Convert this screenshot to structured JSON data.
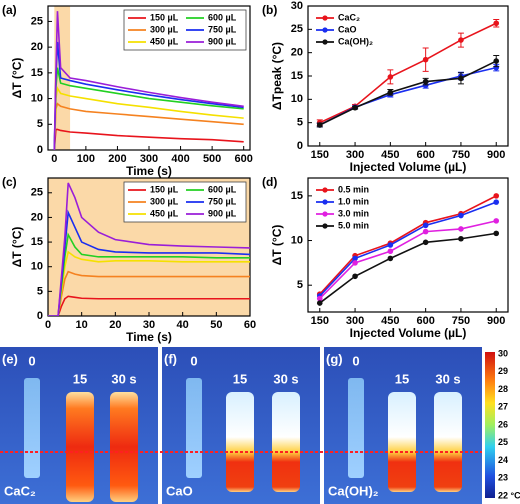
{
  "chart_data": [
    {
      "type": "line",
      "panel_label": "(a)",
      "xlabel": "Time (s)",
      "ylabel": "ΔT (°C)",
      "xlim": [
        -20,
        620
      ],
      "ylim": [
        0,
        28
      ],
      "xticks": [
        0,
        100,
        200,
        300,
        400,
        500,
        600
      ],
      "yticks": [
        0,
        5,
        10,
        15,
        20,
        25
      ],
      "shade": [
        0,
        50
      ],
      "shade_color": "#fbd9a8",
      "legend": "upper right",
      "legend_columns": 2,
      "x": [
        0,
        5,
        10,
        20,
        50,
        100,
        200,
        300,
        400,
        500,
        600
      ],
      "series": [
        {
          "name": "150 µL",
          "color": "#e8141c",
          "values": [
            0,
            4,
            4,
            3.8,
            3.5,
            3.3,
            2.8,
            2.5,
            2.2,
            2,
            1.6
          ]
        },
        {
          "name": "300 µL",
          "color": "#f58220",
          "values": [
            0,
            8,
            9,
            8.5,
            8,
            7.5,
            7,
            6.5,
            6,
            5.5,
            5
          ]
        },
        {
          "name": "450 µL",
          "color": "#f5e000",
          "values": [
            0,
            10,
            12,
            11,
            10.5,
            10,
            9,
            8.3,
            7.5,
            6.8,
            6.2
          ]
        },
        {
          "name": "600 µL",
          "color": "#22d022",
          "values": [
            0,
            12,
            16,
            13,
            12.5,
            12,
            11,
            10,
            9.3,
            8.6,
            8
          ]
        },
        {
          "name": "750 µL",
          "color": "#1a2ef0",
          "values": [
            0,
            14,
            21,
            14,
            13.5,
            12.8,
            11.7,
            10.7,
            9.8,
            9,
            8.3
          ]
        },
        {
          "name": "900 µL",
          "color": "#9a1ed8",
          "values": [
            0,
            15,
            27,
            16,
            14,
            13.5,
            12.3,
            11.2,
            10.2,
            9.3,
            8.5
          ]
        }
      ]
    },
    {
      "type": "line",
      "panel_label": "(b)",
      "xlabel": "Injected Volume (µL)",
      "ylabel": "ΔTpeak (°C)",
      "xlim": [
        100,
        950
      ],
      "ylim": [
        0,
        30
      ],
      "xticks": [
        150,
        300,
        450,
        600,
        750,
        900
      ],
      "yticks": [
        0,
        5,
        10,
        15,
        20,
        25,
        30
      ],
      "markers": true,
      "legend": "upper left",
      "legend_columns": 1,
      "x": [
        150,
        300,
        450,
        600,
        750,
        900
      ],
      "series": [
        {
          "name": "CaC₂",
          "color": "#e8141c",
          "values": [
            5,
            8.5,
            14.8,
            18.5,
            22.7,
            26.3
          ],
          "errors": [
            0.6,
            0.4,
            1.5,
            2.5,
            1.5,
            0.8
          ]
        },
        {
          "name": "CaO",
          "color": "#1a2ef0",
          "values": [
            4.5,
            8.3,
            11,
            13,
            15,
            16.8
          ],
          "errors": [
            0.4,
            0.3,
            0.5,
            0.6,
            0.8,
            0.7
          ]
        },
        {
          "name": "Ca(OH)₂",
          "color": "#111111",
          "values": [
            4.5,
            8.2,
            11.5,
            13.8,
            14.5,
            18.2
          ],
          "errors": [
            0.4,
            0.3,
            0.6,
            0.7,
            1.2,
            1.2
          ]
        }
      ]
    },
    {
      "type": "line",
      "panel_label": "(c)",
      "xlabel": "Time (s)",
      "ylabel": "ΔT (°C)",
      "xlim": [
        0,
        60
      ],
      "ylim": [
        0,
        28
      ],
      "xticks": [
        0,
        10,
        20,
        30,
        40,
        50,
        60
      ],
      "yticks": [
        0,
        5,
        10,
        15,
        20,
        25
      ],
      "shade": [
        0,
        60
      ],
      "shade_color": "#fbd9a8",
      "legend": "upper right",
      "legend_columns": 2,
      "x": [
        0,
        3,
        4,
        5,
        6,
        8,
        10,
        15,
        20,
        30,
        40,
        50,
        60
      ],
      "series": [
        {
          "name": "150 µL",
          "color": "#e8141c",
          "values": [
            0,
            0,
            2,
            3.5,
            4,
            3.8,
            3.6,
            3.5,
            3.5,
            3.5,
            3.5,
            3.5,
            3.5
          ]
        },
        {
          "name": "300 µL",
          "color": "#f58220",
          "values": [
            0,
            0,
            4,
            7.5,
            9,
            8.5,
            8.2,
            8,
            8,
            8,
            8,
            8,
            8
          ]
        },
        {
          "name": "450 µL",
          "color": "#f5e000",
          "values": [
            0,
            0,
            5,
            10,
            13,
            12,
            11.5,
            11,
            11.2,
            11.2,
            11,
            11,
            11
          ]
        },
        {
          "name": "600 µL",
          "color": "#22d022",
          "values": [
            0,
            0,
            6,
            12,
            16.5,
            14,
            12.5,
            12,
            12,
            12,
            12,
            11.8,
            11.8
          ]
        },
        {
          "name": "750 µL",
          "color": "#1a2ef0",
          "values": [
            0,
            0,
            7,
            14,
            21,
            18,
            15,
            13.5,
            13,
            12.8,
            12.8,
            12.8,
            12.5
          ]
        },
        {
          "name": "900 µL",
          "color": "#9a1ed8",
          "values": [
            0,
            0,
            8,
            16,
            27,
            24,
            20,
            17,
            15.5,
            14.5,
            14.2,
            14,
            13.8
          ]
        }
      ]
    },
    {
      "type": "line",
      "panel_label": "(d)",
      "xlabel": "Injected Volume (µL)",
      "ylabel": "ΔT (°C)",
      "xlim": [
        100,
        950
      ],
      "ylim": [
        2,
        17
      ],
      "xticks": [
        150,
        300,
        450,
        600,
        750,
        900
      ],
      "yticks": [
        5,
        10,
        15
      ],
      "markers": true,
      "legend": "upper left",
      "legend_columns": 1,
      "x": [
        150,
        300,
        450,
        600,
        750,
        900
      ],
      "series": [
        {
          "name": "0.5 min",
          "color": "#e8141c",
          "values": [
            4,
            8.3,
            9.7,
            12,
            13,
            15
          ]
        },
        {
          "name": "1.0 min",
          "color": "#1a2ef0",
          "values": [
            3.8,
            8,
            9.5,
            11.7,
            12.8,
            14.3
          ]
        },
        {
          "name": "3.0 min",
          "color": "#e020e0",
          "values": [
            3.5,
            7.5,
            8.8,
            11,
            11.3,
            12.2
          ]
        },
        {
          "name": "5.0 min",
          "color": "#111111",
          "values": [
            3,
            6,
            8,
            9.8,
            10.2,
            10.8
          ]
        }
      ]
    }
  ],
  "thermal": {
    "panels": [
      {
        "panel_label": "(e)",
        "sample": "CaC₂",
        "times": [
          "0",
          "15",
          "30 s"
        ]
      },
      {
        "panel_label": "(f)",
        "sample": "CaO",
        "times": [
          "0",
          "15",
          "30 s"
        ]
      },
      {
        "panel_label": "(g)",
        "sample": "Ca(OH)₂",
        "times": [
          "0",
          "15",
          "30 s"
        ]
      }
    ],
    "colorbar": {
      "labels": [
        "30",
        "29",
        "28",
        "27",
        "26",
        "25",
        "24",
        "23",
        "22 °C"
      ]
    }
  }
}
